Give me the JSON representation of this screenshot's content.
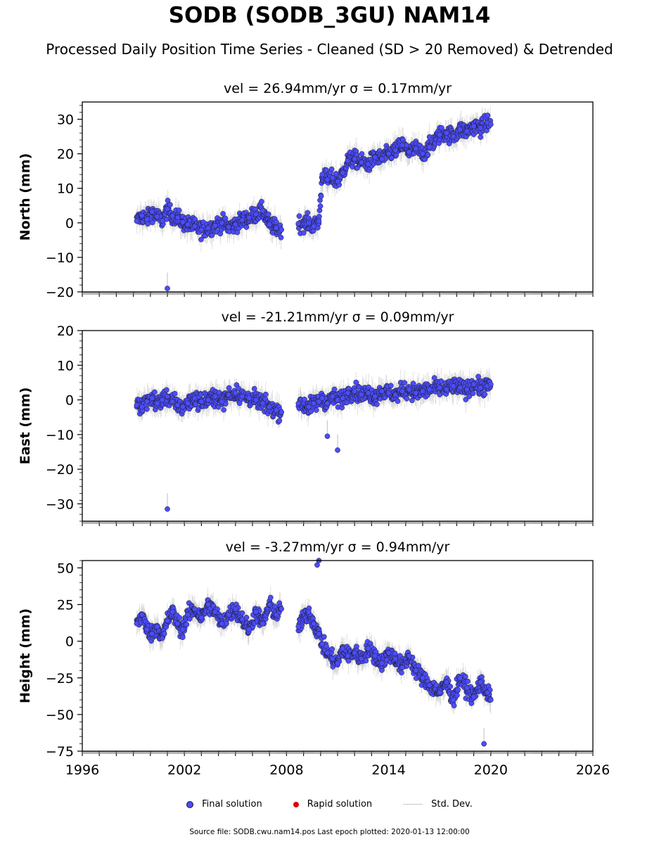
{
  "title": "SODB (SODB_3GU) NAM14",
  "subtitle": "Processed Daily Position Time Series - Cleaned (SD > 20 Removed) & Detrended",
  "legend": {
    "final": "Final solution",
    "rapid": "Rapid solution",
    "std": "Std. Dev."
  },
  "footer": "Source file: SODB.cwu.nam14.pos  Last epoch plotted: 2020-01-13 12:00:00",
  "colors": {
    "final": "#4c4cff",
    "rapid": "#dd0000",
    "std": "#c8c8c8",
    "edge": "#1a1a1a"
  },
  "chart_data": [
    {
      "type": "scatter",
      "title": "vel = 26.94mm/yr   σ = 0.17mm/yr",
      "ylabel": "North (mm)",
      "xlim": [
        1996,
        2026
      ],
      "ylim": [
        -20,
        35
      ],
      "yticks": [
        -20,
        -10,
        0,
        10,
        20,
        30
      ],
      "xticks": [
        1996,
        2002,
        2008,
        2014,
        2020,
        2026
      ],
      "show_xticklabels": false,
      "series": [
        {
          "name": "Final solution",
          "x": [
            1999.2,
            1999.5,
            1999.8,
            2000.1,
            2000.4,
            2000.7,
            2001.0,
            2001.3,
            2001.6,
            2001.9,
            2002.2,
            2002.6,
            2003.0,
            2003.4,
            2003.8,
            2004.2,
            2004.6,
            2005.0,
            2005.4,
            2005.8,
            2006.2,
            2006.6,
            2007.0,
            2007.4,
            2007.7,
            2008.7,
            2009.3,
            2009.6,
            2009.9,
            2010.1,
            2010.4,
            2010.7,
            2011.0,
            2011.3,
            2011.6,
            2012.0,
            2012.4,
            2012.8,
            2013.2,
            2013.6,
            2014.0,
            2014.4,
            2014.8,
            2015.2,
            2015.6,
            2016.0,
            2016.4,
            2017.0,
            2017.4,
            2017.8,
            2018.2,
            2018.6,
            2019.0,
            2019.4,
            2019.8,
            2020.0
          ],
          "y": [
            0.5,
            2.1,
            1.0,
            3.2,
            1.8,
            0.6,
            4.0,
            2.0,
            1.5,
            0.2,
            -0.5,
            -1.0,
            -2.0,
            -1.5,
            -0.8,
            0.0,
            -1.2,
            -0.5,
            0.8,
            1.5,
            2.5,
            3.5,
            -0.5,
            -1.5,
            -2.0,
            -0.2,
            0.0,
            -1.0,
            0.5,
            14.0,
            12.5,
            13.0,
            12.0,
            14.5,
            18.0,
            18.5,
            17.5,
            17.0,
            19.0,
            18.5,
            20.0,
            21.0,
            22.5,
            20.5,
            21.5,
            20.0,
            22.0,
            25.5,
            26.0,
            25.0,
            27.0,
            26.5,
            28.0,
            27.5,
            29.0,
            28.5
          ]
        }
      ],
      "outliers": {
        "x": [
          2001.0
        ],
        "y": [
          -19
        ]
      }
    },
    {
      "type": "scatter",
      "title": "vel = -21.21mm/yr   σ = 0.09mm/yr",
      "ylabel": "East (mm)",
      "xlim": [
        1996,
        2026
      ],
      "ylim": [
        -35,
        20
      ],
      "yticks": [
        -30,
        -20,
        -10,
        0,
        10,
        20
      ],
      "xticks": [
        1996,
        2002,
        2008,
        2014,
        2020,
        2026
      ],
      "show_xticklabels": false,
      "series": [
        {
          "name": "Final solution",
          "x": [
            1999.2,
            1999.5,
            1999.8,
            2000.1,
            2000.4,
            2000.7,
            2001.0,
            2001.3,
            2001.6,
            2001.9,
            2002.2,
            2002.6,
            2003.0,
            2003.4,
            2003.8,
            2004.2,
            2004.6,
            2005.0,
            2005.4,
            2005.8,
            2006.2,
            2006.6,
            2007.0,
            2007.4,
            2007.7,
            2008.7,
            2009.3,
            2009.6,
            2009.9,
            2010.1,
            2010.4,
            2010.7,
            2011.0,
            2011.3,
            2011.6,
            2012.0,
            2012.4,
            2012.8,
            2013.2,
            2013.6,
            2014.0,
            2014.4,
            2014.8,
            2015.2,
            2015.6,
            2016.0,
            2016.4,
            2017.0,
            2017.4,
            2017.8,
            2018.2,
            2018.6,
            2019.0,
            2019.4,
            2019.8,
            2020.0
          ],
          "y": [
            -1.5,
            -2.0,
            -0.5,
            0.5,
            -1.0,
            0.0,
            1.0,
            -0.5,
            -1.5,
            -2.0,
            -1.0,
            0.5,
            -0.5,
            0.0,
            1.0,
            -0.5,
            1.5,
            2.0,
            1.0,
            0.5,
            0.0,
            -1.0,
            -2.0,
            -3.0,
            -3.5,
            -1.0,
            -2.0,
            -1.0,
            -0.5,
            0.5,
            -1.0,
            1.0,
            0.0,
            0.5,
            2.0,
            2.5,
            1.5,
            2.0,
            1.0,
            2.5,
            2.0,
            1.5,
            2.5,
            3.0,
            2.0,
            2.5,
            3.0,
            3.5,
            3.0,
            4.0,
            3.5,
            3.0,
            4.5,
            3.5,
            4.0,
            4.5
          ]
        }
      ],
      "outliers": {
        "x": [
          2001.0,
          2010.4,
          2011.0
        ],
        "y": [
          -31.5,
          -10.5,
          -14.5
        ]
      }
    },
    {
      "type": "scatter",
      "title": "vel = -3.27mm/yr   σ = 0.94mm/yr",
      "ylabel": "Height (mm)",
      "xlim": [
        1996,
        2026
      ],
      "ylim": [
        -75,
        55
      ],
      "yticks": [
        -75,
        -50,
        -25,
        0,
        25,
        50
      ],
      "xticks": [
        1996,
        2002,
        2008,
        2014,
        2020,
        2026
      ],
      "show_xticklabels": true,
      "series": [
        {
          "name": "Final solution",
          "x": [
            1999.2,
            1999.5,
            1999.8,
            2000.1,
            2000.4,
            2000.7,
            2001.0,
            2001.3,
            2001.6,
            2001.9,
            2002.2,
            2002.6,
            2003.0,
            2003.4,
            2003.8,
            2004.2,
            2004.6,
            2005.0,
            2005.4,
            2005.8,
            2006.2,
            2006.6,
            2007.0,
            2007.4,
            2007.7,
            2008.7,
            2009.3,
            2009.6,
            2009.9,
            2010.1,
            2010.4,
            2010.7,
            2011.0,
            2011.3,
            2011.6,
            2012.0,
            2012.4,
            2012.8,
            2013.2,
            2013.6,
            2014.0,
            2014.4,
            2014.8,
            2015.2,
            2015.6,
            2016.0,
            2016.4,
            2017.0,
            2017.4,
            2017.8,
            2018.2,
            2018.6,
            2019.0,
            2019.4,
            2019.8,
            2020.0
          ],
          "y": [
            12,
            18,
            8,
            5,
            10,
            2,
            14,
            20,
            12,
            8,
            18,
            22,
            16,
            25,
            20,
            12,
            18,
            22,
            15,
            8,
            20,
            12,
            25,
            18,
            22,
            10,
            20,
            12,
            5,
            -2,
            -8,
            -12,
            -15,
            -5,
            -10,
            -8,
            -12,
            -5,
            -10,
            -15,
            -8,
            -12,
            -18,
            -10,
            -20,
            -25,
            -30,
            -35,
            -28,
            -40,
            -25,
            -32,
            -38,
            -28,
            -35,
            -40
          ]
        }
      ],
      "outliers": {
        "x": [
          2009.8,
          2009.9,
          2019.6
        ],
        "y": [
          52,
          55,
          -70
        ]
      }
    }
  ]
}
